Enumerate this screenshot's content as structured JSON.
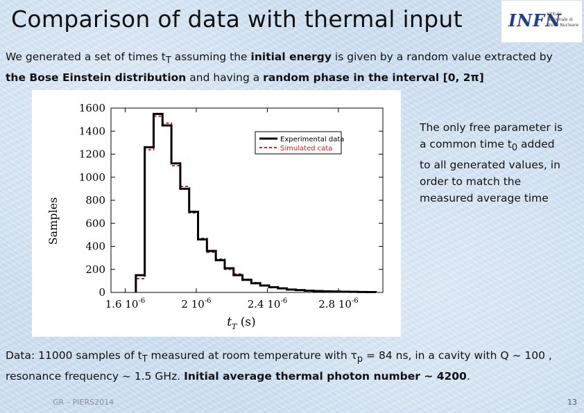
{
  "slide": {
    "title": "Comparison of data with thermal input",
    "logo": {
      "mark": "INFN",
      "sub": "Istituto Nazionale di Fisica Nucleare"
    },
    "intro": {
      "p1": "We generated a set of times t",
      "p1_sub": "T",
      "p2": " assuming the ",
      "p3_bold": "initial energy",
      "p4": " is given by a random value extracted by ",
      "p5_bold": "the Bose Einstein distribution",
      "p6": " and having a ",
      "p7_bold": "random phase in the interval [0, 2π]"
    },
    "side_text": {
      "p1": "The only free parameter is a common time t",
      "p1_sub": "0",
      "p2": " added to all generated values, in order to match the measured average time"
    },
    "footer": {
      "p1": "Data: 11000 samples of t",
      "p1_sub": "T",
      "p2": " measured at room temperature with τ",
      "p2_sub": "p",
      "p3": " = 84 ns, in a cavity with Q ~ 100 , resonance frequency ~ 1.5 GHz. ",
      "p4_bold": "Initial average thermal photon number ~ 4200",
      "p5": "."
    },
    "footer_left": "GR – PIERS2014",
    "page_number": "13"
  },
  "chart_data": {
    "type": "line",
    "step": true,
    "xlabel": "t",
    "xlabel_sub": "T",
    "xlabel_unit": " (s)",
    "ylabel": "Samples",
    "xlim": [
      1.52e-06,
      3.05e-06
    ],
    "ylim": [
      0,
      1600
    ],
    "yticks": [
      0,
      200,
      400,
      600,
      800,
      1000,
      1200,
      1400,
      1600
    ],
    "xticks": [
      {
        "value": 1.6e-06,
        "label": "1.6 10",
        "exp": "-6"
      },
      {
        "value": 2e-06,
        "label": "2 10",
        "exp": "-6"
      },
      {
        "value": 2.4e-06,
        "label": "2.4 10",
        "exp": "-6"
      },
      {
        "value": 2.8e-06,
        "label": "2.8 10",
        "exp": "-6"
      }
    ],
    "bin_edges": [
      1.66e-06,
      1.71e-06,
      1.76e-06,
      1.81e-06,
      1.86e-06,
      1.91e-06,
      1.96e-06,
      2.01e-06,
      2.06e-06,
      2.11e-06,
      2.16e-06,
      2.21e-06,
      2.26e-06,
      2.31e-06,
      2.36e-06,
      2.41e-06,
      2.46e-06,
      2.51e-06,
      2.56e-06,
      2.61e-06,
      2.66e-06,
      2.71e-06,
      2.76e-06,
      2.81e-06,
      2.86e-06,
      2.91e-06,
      2.96e-06,
      3.01e-06
    ],
    "series": [
      {
        "name": "Experimental data",
        "color": "#000000",
        "dash": "none",
        "values": [
          150,
          1260,
          1550,
          1450,
          1120,
          900,
          700,
          460,
          360,
          280,
          210,
          150,
          110,
          80,
          60,
          45,
          35,
          25,
          20,
          15,
          12,
          10,
          8,
          6,
          5,
          4,
          3
        ]
      },
      {
        "name": "Simulated cata",
        "color": "#cc2222",
        "dash": "4,3",
        "values": [
          120,
          1240,
          1530,
          1470,
          1100,
          920,
          690,
          470,
          350,
          290,
          200,
          160,
          105,
          85,
          58,
          48,
          33,
          27,
          18,
          16,
          11,
          10,
          7,
          6,
          5,
          4,
          3
        ]
      }
    ],
    "legend_position": "top-right",
    "grid": false
  }
}
